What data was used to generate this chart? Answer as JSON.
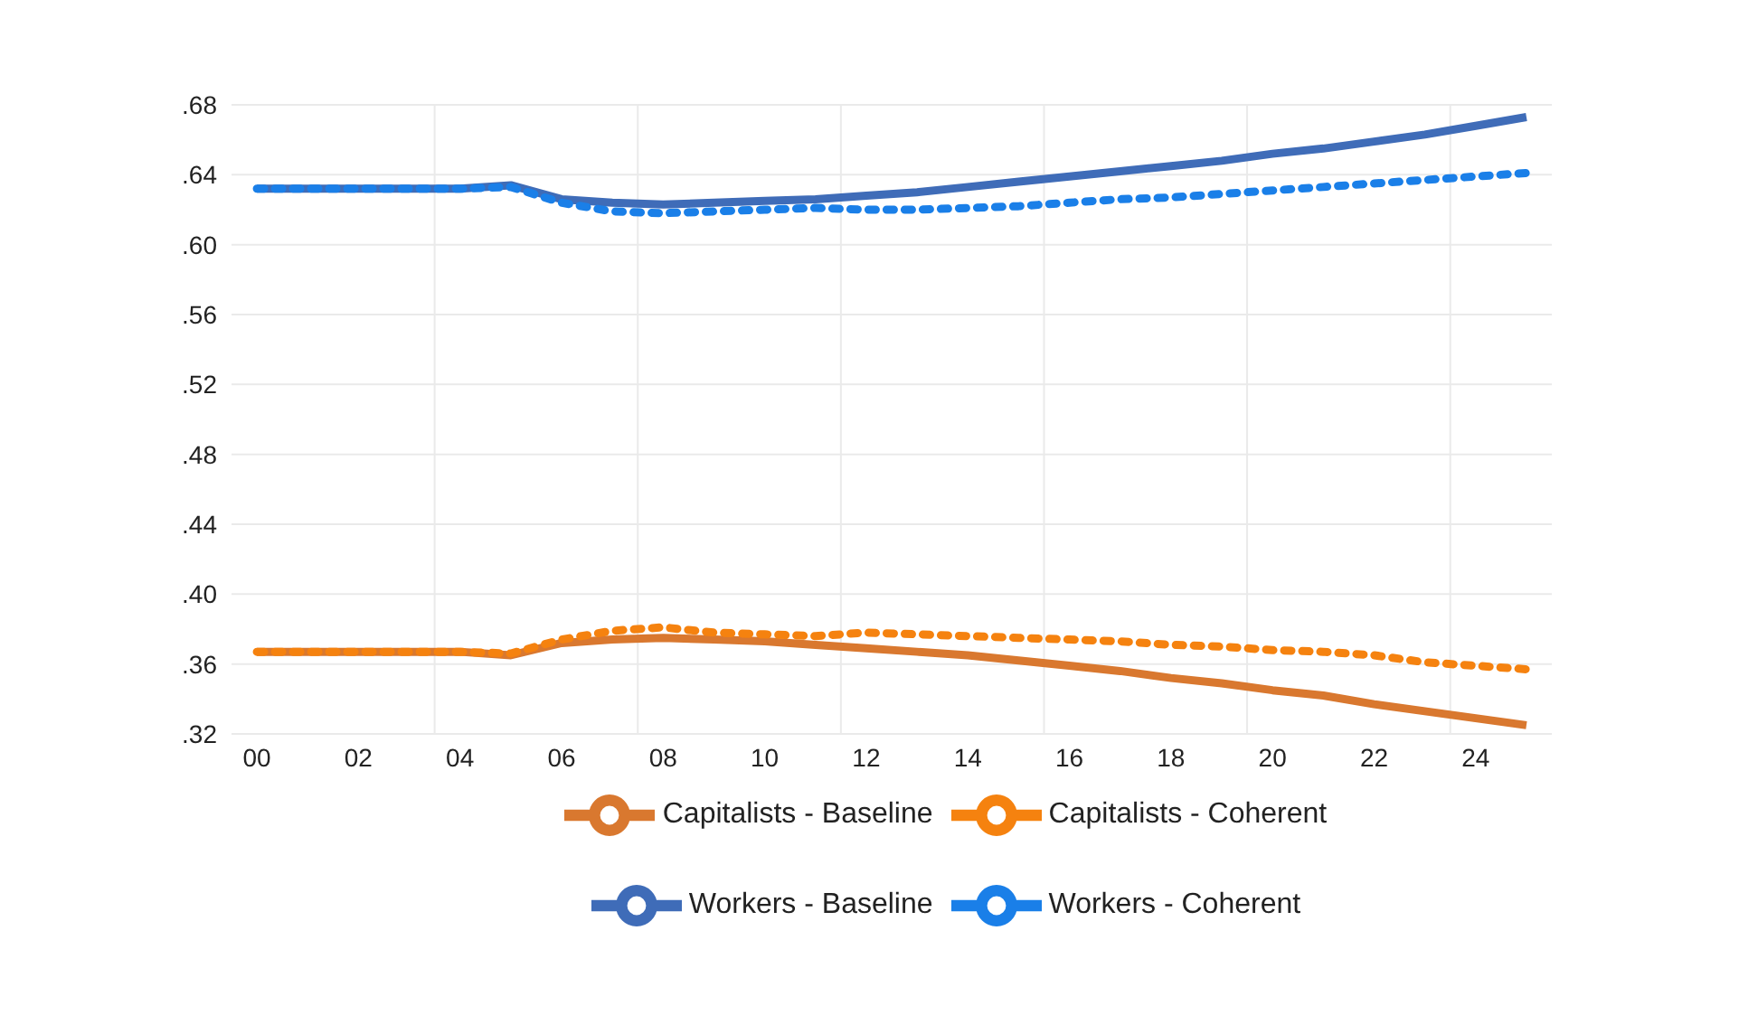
{
  "chart_data": {
    "type": "line",
    "categories": [
      "00",
      null,
      "02",
      null,
      "04",
      null,
      "06",
      null,
      "08",
      null,
      "10",
      null,
      "12",
      null,
      "14",
      null,
      "16",
      null,
      "18",
      null,
      "20",
      null,
      "22",
      null,
      "24",
      null
    ],
    "ylim": [
      0.32,
      0.68
    ],
    "yticks": [
      {
        "value": 0.32,
        "label": ".32"
      },
      {
        "value": 0.36,
        "label": ".36"
      },
      {
        "value": 0.4,
        "label": ".40"
      },
      {
        "value": 0.44,
        "label": ".44"
      },
      {
        "value": 0.48,
        "label": ".48"
      },
      {
        "value": 0.52,
        "label": ".52"
      },
      {
        "value": 0.56,
        "label": ".56"
      },
      {
        "value": 0.6,
        "label": ".60"
      },
      {
        "value": 0.64,
        "label": ".64"
      },
      {
        "value": 0.68,
        "label": ".68"
      }
    ],
    "grid": true,
    "legend": "bottom",
    "marker": "none",
    "series": [
      {
        "name": "Workers - Baseline",
        "color": "#3f6cb8",
        "line_style": "solid",
        "values": [
          0.632,
          0.632,
          0.632,
          0.632,
          0.632,
          0.634,
          0.626,
          0.624,
          0.623,
          0.624,
          0.625,
          0.626,
          0.628,
          0.63,
          0.633,
          0.636,
          0.639,
          0.642,
          0.645,
          0.648,
          0.652,
          0.655,
          0.659,
          0.663,
          0.668,
          0.673
        ]
      },
      {
        "name": "Capitalists -  Baseline",
        "color": "#d9782f",
        "line_style": "solid",
        "values": [
          0.367,
          0.367,
          0.367,
          0.367,
          0.367,
          0.365,
          0.372,
          0.374,
          0.375,
          0.374,
          0.373,
          0.371,
          0.369,
          0.367,
          0.365,
          0.362,
          0.359,
          0.356,
          0.352,
          0.349,
          0.345,
          0.342,
          0.337,
          0.333,
          0.329,
          0.325
        ]
      },
      {
        "name": "Workers - Coherent",
        "color": "#1a7fe8",
        "line_style": "dotted",
        "values": [
          0.632,
          0.632,
          0.632,
          0.632,
          0.632,
          0.633,
          0.624,
          0.619,
          0.618,
          0.619,
          0.62,
          0.621,
          0.62,
          0.62,
          0.621,
          0.622,
          0.624,
          0.626,
          0.627,
          0.629,
          0.631,
          0.633,
          0.635,
          0.637,
          0.639,
          0.641
        ]
      },
      {
        "name": "Capitalists -  Coherent",
        "color": "#f5820f",
        "line_style": "dotted",
        "values": [
          0.367,
          0.367,
          0.367,
          0.367,
          0.367,
          0.366,
          0.374,
          0.379,
          0.381,
          0.378,
          0.377,
          0.376,
          0.378,
          0.377,
          0.376,
          0.375,
          0.374,
          0.373,
          0.371,
          0.37,
          0.368,
          0.367,
          0.365,
          0.361,
          0.359,
          0.357
        ]
      }
    ]
  }
}
